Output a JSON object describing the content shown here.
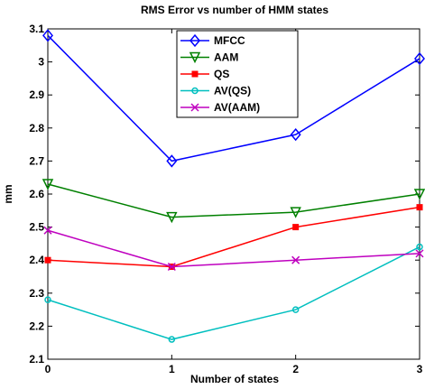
{
  "chart_data": {
    "type": "line",
    "title": "RMS Error vs number of HMM states",
    "xlabel": "Number of states",
    "ylabel": "mm",
    "x": [
      0,
      1,
      2,
      3
    ],
    "xlim": [
      0,
      3
    ],
    "ylim": [
      2.1,
      3.1
    ],
    "xticks": [
      "0",
      "1",
      "2",
      "3"
    ],
    "yticks": [
      "2.1",
      "2.2",
      "2.3",
      "2.4",
      "2.5",
      "2.6",
      "2.7",
      "2.8",
      "2.9",
      "3",
      "3.1"
    ],
    "grid": false,
    "legend_position": "top-center",
    "series": [
      {
        "name": "MFCC",
        "values": [
          3.08,
          2.7,
          2.78,
          3.01
        ],
        "color": "#0000ff",
        "marker": "diamond"
      },
      {
        "name": "AAM",
        "values": [
          2.63,
          2.53,
          2.545,
          2.6
        ],
        "color": "#008000",
        "marker": "triangle-down"
      },
      {
        "name": "QS",
        "values": [
          2.4,
          2.38,
          2.5,
          2.56
        ],
        "color": "#ff0000",
        "marker": "square"
      },
      {
        "name": "AV(QS)",
        "values": [
          2.28,
          2.16,
          2.25,
          2.44
        ],
        "color": "#00bfbf",
        "marker": "circle"
      },
      {
        "name": "AV(AAM)",
        "values": [
          2.49,
          2.38,
          2.4,
          2.42
        ],
        "color": "#bf00bf",
        "marker": "x"
      }
    ]
  }
}
